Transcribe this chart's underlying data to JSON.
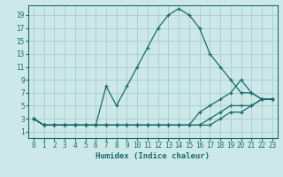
{
  "title": "",
  "xlabel": "Humidex (Indice chaleur)",
  "ylabel": "",
  "background_color": "#cce8e8",
  "grid_color": "#aacccc",
  "line_color": "#1a6b6b",
  "xlim": [
    -0.5,
    23.5
  ],
  "ylim": [
    0.0,
    20.5
  ],
  "xticks": [
    0,
    1,
    2,
    3,
    4,
    5,
    6,
    7,
    8,
    9,
    10,
    11,
    12,
    13,
    14,
    15,
    16,
    17,
    18,
    19,
    20,
    21,
    22,
    23
  ],
  "yticks": [
    1,
    3,
    5,
    7,
    9,
    11,
    13,
    15,
    17,
    19
  ],
  "lines": [
    {
      "x": [
        0,
        1,
        2,
        3,
        4,
        5,
        6,
        7,
        8,
        9,
        10,
        11,
        12,
        13,
        14,
        15,
        16,
        17,
        18,
        19,
        20,
        21,
        22,
        23
      ],
      "y": [
        3,
        2,
        2,
        2,
        2,
        2,
        2,
        8,
        5,
        8,
        11,
        14,
        17,
        19,
        20,
        19,
        17,
        13,
        11,
        9,
        7,
        7,
        6,
        6
      ]
    },
    {
      "x": [
        0,
        1,
        2,
        3,
        4,
        5,
        6,
        7,
        8,
        9,
        10,
        11,
        12,
        13,
        14,
        15,
        16,
        17,
        18,
        19,
        20,
        21,
        22,
        23
      ],
      "y": [
        3,
        2,
        2,
        2,
        2,
        2,
        2,
        2,
        2,
        2,
        2,
        2,
        2,
        2,
        2,
        2,
        4,
        5,
        6,
        7,
        9,
        7,
        6,
        6
      ]
    },
    {
      "x": [
        0,
        1,
        2,
        3,
        4,
        5,
        6,
        7,
        8,
        9,
        10,
        11,
        12,
        13,
        14,
        15,
        16,
        17,
        18,
        19,
        20,
        21,
        22,
        23
      ],
      "y": [
        3,
        2,
        2,
        2,
        2,
        2,
        2,
        2,
        2,
        2,
        2,
        2,
        2,
        2,
        2,
        2,
        2,
        3,
        4,
        5,
        5,
        5,
        6,
        6
      ]
    },
    {
      "x": [
        0,
        1,
        2,
        3,
        4,
        5,
        6,
        7,
        8,
        9,
        10,
        11,
        12,
        13,
        14,
        15,
        16,
        17,
        18,
        19,
        20,
        21,
        22,
        23
      ],
      "y": [
        3,
        2,
        2,
        2,
        2,
        2,
        2,
        2,
        2,
        2,
        2,
        2,
        2,
        2,
        2,
        2,
        2,
        2,
        3,
        4,
        4,
        5,
        6,
        6
      ]
    }
  ],
  "tick_fontsize": 5.5,
  "xlabel_fontsize": 6.5
}
